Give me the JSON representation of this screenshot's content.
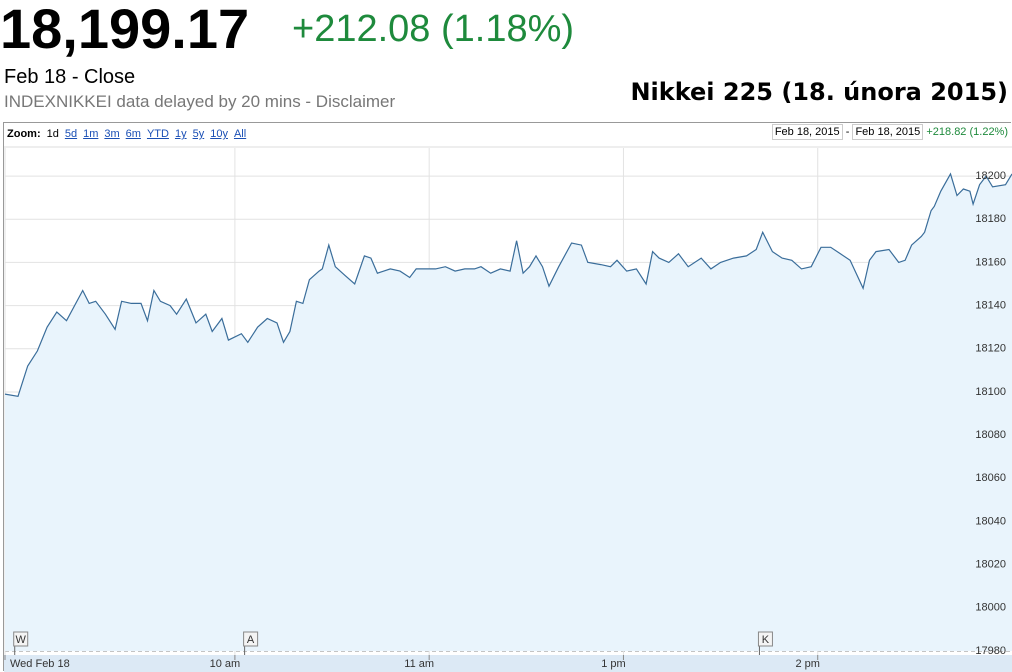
{
  "header": {
    "price": "18,199.17",
    "change": "+212.08 (1.18%)",
    "status": "Feb 18 - Close",
    "disclaimer": "INDEXNIKKEI data delayed by 20 mins - Disclaimer"
  },
  "toolbar": {
    "zoom_label": "Zoom:",
    "zoom_options": [
      "1d",
      "5d",
      "1m",
      "3m",
      "6m",
      "YTD",
      "1y",
      "5y",
      "10y",
      "All"
    ],
    "range_start": "Feb 18, 2015",
    "range_sep": "-",
    "range_end": "Feb 18, 2015",
    "range_change": "+218.82 (1.22%)"
  },
  "chart_data": {
    "type": "area",
    "title": "Nikkei 225 (18. února 2015)",
    "x": [
      -11,
      -7,
      -4,
      -1,
      2,
      5,
      8,
      13,
      15,
      17,
      20,
      23,
      25,
      28,
      31,
      33,
      35,
      37,
      40,
      42,
      45,
      48,
      51,
      53,
      56,
      58,
      62,
      64,
      67,
      70,
      73,
      75,
      77,
      79,
      81,
      83,
      86,
      87,
      89,
      91,
      94,
      97,
      100,
      102,
      104,
      108,
      111,
      114,
      116,
      119,
      122,
      125,
      128,
      131,
      134,
      136,
      139,
      142,
      145,
      147,
      149,
      151,
      153,
      155,
      157,
      160,
      164,
      167,
      169,
      173,
      176,
      178,
      181,
      184,
      187,
      189,
      191,
      194,
      197,
      200,
      204,
      207,
      210,
      214,
      218,
      221,
      223,
      226,
      229,
      232,
      235,
      238,
      241,
      244,
      247,
      250,
      254,
      256,
      258,
      262,
      265,
      267,
      269,
      272,
      273,
      275,
      276,
      278,
      281,
      283,
      285,
      287,
      288,
      290,
      292,
      294,
      298,
      300
    ],
    "series": [
      {
        "name": "INDEXNIKKEI",
        "color": "#3a6d9a",
        "values": [
          18099,
          18098,
          18112,
          18119,
          18130,
          18137,
          18133,
          18147,
          18141,
          18142,
          18136,
          18129,
          18142,
          18141,
          18141,
          18133,
          18147,
          18142,
          18140,
          18136,
          18143,
          18132,
          18136,
          18128,
          18134,
          18124,
          18127,
          18123,
          18130,
          18134,
          18132,
          18123,
          18128,
          18142,
          18141,
          18152,
          18156,
          18157,
          18168,
          18158,
          18154,
          18150,
          18163,
          18162,
          18155,
          18157,
          18156,
          18153,
          18157,
          18157,
          18157,
          18158,
          18156,
          18157,
          18157,
          18158,
          18155,
          18157,
          18156,
          18170,
          18155,
          18158,
          18163,
          18158,
          18149,
          18158,
          18169,
          18168,
          18160,
          18159,
          18158,
          18161,
          18156,
          18157,
          18150,
          18165,
          18162,
          18160,
          18164,
          18158,
          18162,
          18157,
          18160,
          18162,
          18163,
          18166,
          18174,
          18165,
          18162,
          18161,
          18157,
          18158,
          18167,
          18167,
          18164,
          18161,
          18148,
          18161,
          18165,
          18166,
          18160,
          18161,
          18168,
          18172,
          18174,
          18184,
          18186,
          18193,
          18201,
          18191,
          18194,
          18193,
          18187,
          18196,
          18200,
          18195,
          18196,
          18201
        ]
      }
    ],
    "xlim": [
      -11,
      300
    ],
    "xticks": [
      {
        "value": -11,
        "label": "Wed Feb 18"
      },
      {
        "value": 60,
        "label": "10 am"
      },
      {
        "value": 120,
        "label": "11 am"
      },
      {
        "value": 180,
        "label": "1 pm"
      },
      {
        "value": 240,
        "label": "2 pm"
      }
    ],
    "ylim": [
      17980,
      18213
    ],
    "yticks": [
      17980,
      18000,
      18020,
      18040,
      18060,
      18080,
      18100,
      18120,
      18140,
      18160,
      18180,
      18200
    ],
    "grid": true,
    "fill": "#e9f4fc",
    "annotations": [
      {
        "label": "W",
        "x": -8
      },
      {
        "label": "A",
        "x": 63
      },
      {
        "label": "K",
        "x": 222
      }
    ]
  }
}
